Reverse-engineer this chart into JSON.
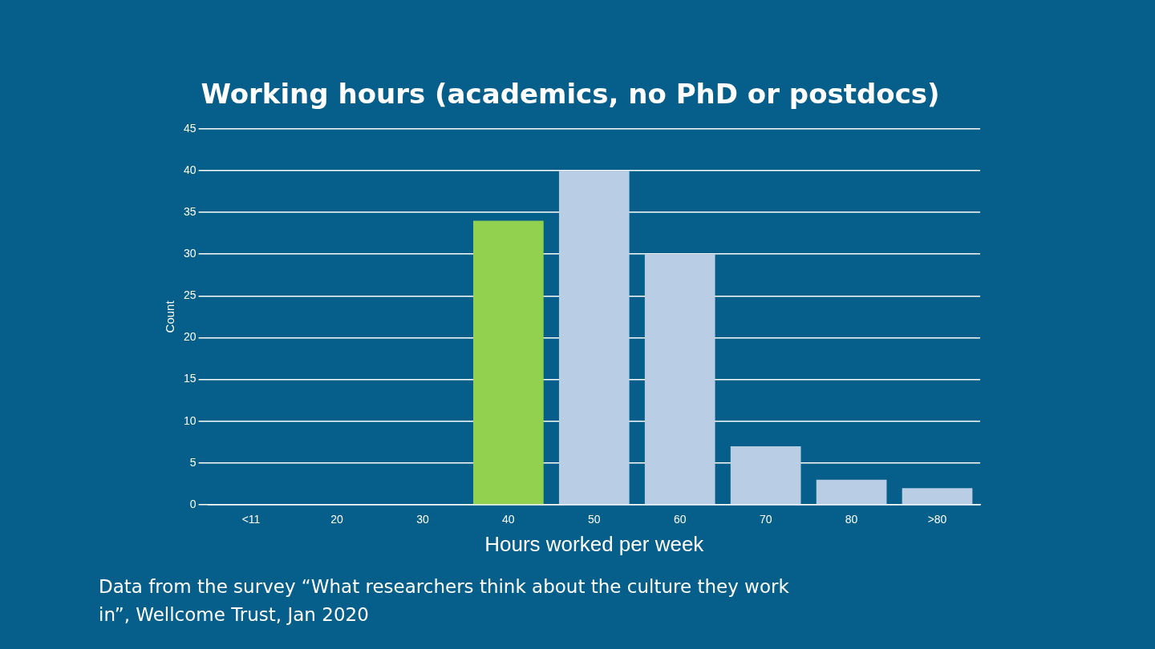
{
  "chart_data": {
    "type": "bar",
    "title": "Working hours (academics, no PhD or postdocs)",
    "xlabel": "Hours worked per week",
    "ylabel": "Count",
    "categories": [
      "<11",
      "20",
      "30",
      "40",
      "50",
      "60",
      "70",
      "80",
      ">80"
    ],
    "values": [
      0,
      0,
      0,
      34,
      40,
      30,
      7,
      3,
      2
    ],
    "colors": [
      "#b9cde5",
      "#b9cde5",
      "#b9cde5",
      "#92d050",
      "#b9cde5",
      "#b9cde5",
      "#b9cde5",
      "#b9cde5",
      "#b9cde5"
    ],
    "ylim": [
      0,
      45
    ],
    "yticks": [
      0,
      5,
      10,
      15,
      20,
      25,
      30,
      35,
      40,
      45
    ],
    "grid": "y",
    "legend": false,
    "annotations": [
      "Data from the survey “What researchers think about the culture they work in”, Wellcome Trust, Jan 2020"
    ]
  }
}
